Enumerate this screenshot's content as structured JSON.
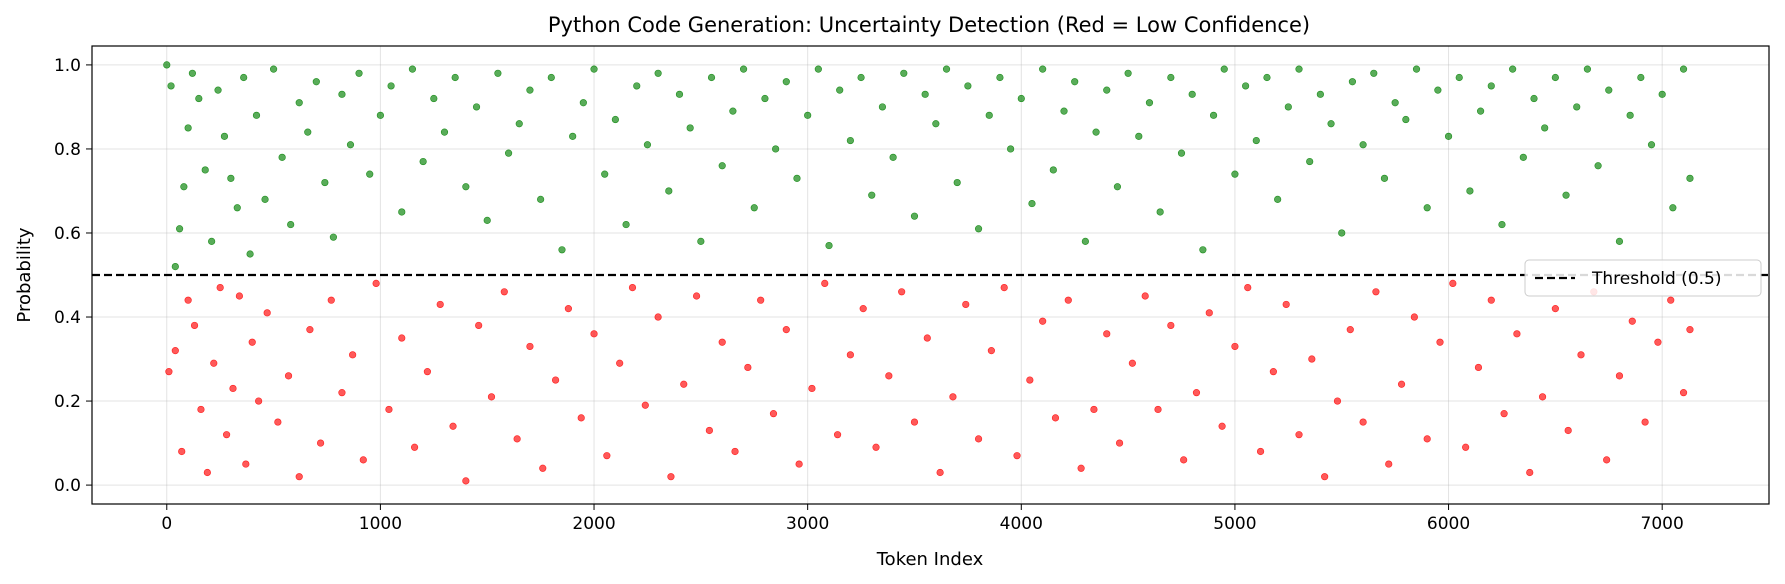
{
  "chart_data": {
    "type": "scatter",
    "title": "Python Code Generation: Uncertainty Detection (Red = Low Confidence)",
    "xlabel": "Token Index",
    "ylabel": "Probability",
    "xlim": [
      -350,
      7500
    ],
    "ylim": [
      -0.045,
      1.045
    ],
    "x_ticks": [
      0,
      1000,
      2000,
      3000,
      4000,
      5000,
      6000,
      7000
    ],
    "y_ticks": [
      0.0,
      0.2,
      0.4,
      0.6,
      0.8,
      1.0
    ],
    "y_tick_labels": [
      "0.0",
      "0.2",
      "0.4",
      "0.6",
      "0.8",
      "1.0"
    ],
    "grid": true,
    "legend_position": "center-right",
    "threshold": {
      "value": 0.5,
      "label": "Threshold (0.5)",
      "style": "dashed",
      "color": "#000000"
    },
    "colors": {
      "high_confidence": "#008000",
      "low_confidence": "#ff0000"
    },
    "series": [
      {
        "color": "#008000",
        "points": [
          [
            0,
            1.0
          ],
          [
            20,
            0.95
          ],
          [
            40,
            0.52
          ],
          [
            60,
            0.61
          ],
          [
            80,
            0.71
          ],
          [
            100,
            0.85
          ],
          [
            120,
            0.98
          ],
          [
            150,
            0.92
          ],
          [
            180,
            0.75
          ],
          [
            210,
            0.58
          ],
          [
            240,
            0.94
          ],
          [
            270,
            0.83
          ],
          [
            300,
            0.73
          ],
          [
            330,
            0.66
          ],
          [
            360,
            0.97
          ],
          [
            390,
            0.55
          ],
          [
            420,
            0.88
          ],
          [
            460,
            0.68
          ],
          [
            500,
            0.99
          ],
          [
            540,
            0.78
          ],
          [
            580,
            0.62
          ],
          [
            620,
            0.91
          ],
          [
            660,
            0.84
          ],
          [
            700,
            0.96
          ],
          [
            740,
            0.72
          ],
          [
            780,
            0.59
          ],
          [
            820,
            0.93
          ],
          [
            860,
            0.81
          ],
          [
            900,
            0.98
          ],
          [
            950,
            0.74
          ],
          [
            1000,
            0.88
          ],
          [
            1050,
            0.95
          ],
          [
            1100,
            0.65
          ],
          [
            1150,
            0.99
          ],
          [
            1200,
            0.77
          ],
          [
            1250,
            0.92
          ],
          [
            1300,
            0.84
          ],
          [
            1350,
            0.97
          ],
          [
            1400,
            0.71
          ],
          [
            1450,
            0.9
          ],
          [
            1500,
            0.63
          ],
          [
            1550,
            0.98
          ],
          [
            1600,
            0.79
          ],
          [
            1650,
            0.86
          ],
          [
            1700,
            0.94
          ],
          [
            1750,
            0.68
          ],
          [
            1800,
            0.97
          ],
          [
            1850,
            0.56
          ],
          [
            1900,
            0.83
          ],
          [
            1950,
            0.91
          ],
          [
            2000,
            0.99
          ],
          [
            2050,
            0.74
          ],
          [
            2100,
            0.87
          ],
          [
            2150,
            0.62
          ],
          [
            2200,
            0.95
          ],
          [
            2250,
            0.81
          ],
          [
            2300,
            0.98
          ],
          [
            2350,
            0.7
          ],
          [
            2400,
            0.93
          ],
          [
            2450,
            0.85
          ],
          [
            2500,
            0.58
          ],
          [
            2550,
            0.97
          ],
          [
            2600,
            0.76
          ],
          [
            2650,
            0.89
          ],
          [
            2700,
            0.99
          ],
          [
            2750,
            0.66
          ],
          [
            2800,
            0.92
          ],
          [
            2850,
            0.8
          ],
          [
            2900,
            0.96
          ],
          [
            2950,
            0.73
          ],
          [
            3000,
            0.88
          ],
          [
            3050,
            0.99
          ],
          [
            3100,
            0.57
          ],
          [
            3150,
            0.94
          ],
          [
            3200,
            0.82
          ],
          [
            3250,
            0.97
          ],
          [
            3300,
            0.69
          ],
          [
            3350,
            0.9
          ],
          [
            3400,
            0.78
          ],
          [
            3450,
            0.98
          ],
          [
            3500,
            0.64
          ],
          [
            3550,
            0.93
          ],
          [
            3600,
            0.86
          ],
          [
            3650,
            0.99
          ],
          [
            3700,
            0.72
          ],
          [
            3750,
            0.95
          ],
          [
            3800,
            0.61
          ],
          [
            3850,
            0.88
          ],
          [
            3900,
            0.97
          ],
          [
            3950,
            0.8
          ],
          [
            4000,
            0.92
          ],
          [
            4050,
            0.67
          ],
          [
            4100,
            0.99
          ],
          [
            4150,
            0.75
          ],
          [
            4200,
            0.89
          ],
          [
            4250,
            0.96
          ],
          [
            4300,
            0.58
          ],
          [
            4350,
            0.84
          ],
          [
            4400,
            0.94
          ],
          [
            4450,
            0.71
          ],
          [
            4500,
            0.98
          ],
          [
            4550,
            0.83
          ],
          [
            4600,
            0.91
          ],
          [
            4650,
            0.65
          ],
          [
            4700,
            0.97
          ],
          [
            4750,
            0.79
          ],
          [
            4800,
            0.93
          ],
          [
            4850,
            0.56
          ],
          [
            4900,
            0.88
          ],
          [
            4950,
            0.99
          ],
          [
            5000,
            0.74
          ],
          [
            5050,
            0.95
          ],
          [
            5100,
            0.82
          ],
          [
            5150,
            0.97
          ],
          [
            5200,
            0.68
          ],
          [
            5250,
            0.9
          ],
          [
            5300,
            0.99
          ],
          [
            5350,
            0.77
          ],
          [
            5400,
            0.93
          ],
          [
            5450,
            0.86
          ],
          [
            5500,
            0.6
          ],
          [
            5550,
            0.96
          ],
          [
            5600,
            0.81
          ],
          [
            5650,
            0.98
          ],
          [
            5700,
            0.73
          ],
          [
            5750,
            0.91
          ],
          [
            5800,
            0.87
          ],
          [
            5850,
            0.99
          ],
          [
            5900,
            0.66
          ],
          [
            5950,
            0.94
          ],
          [
            6000,
            0.83
          ],
          [
            6050,
            0.97
          ],
          [
            6100,
            0.7
          ],
          [
            6150,
            0.89
          ],
          [
            6200,
            0.95
          ],
          [
            6250,
            0.62
          ],
          [
            6300,
            0.99
          ],
          [
            6350,
            0.78
          ],
          [
            6400,
            0.92
          ],
          [
            6450,
            0.85
          ],
          [
            6500,
            0.97
          ],
          [
            6550,
            0.69
          ],
          [
            6600,
            0.9
          ],
          [
            6650,
            0.99
          ],
          [
            6700,
            0.76
          ],
          [
            6750,
            0.94
          ],
          [
            6800,
            0.58
          ],
          [
            6850,
            0.88
          ],
          [
            6900,
            0.97
          ],
          [
            6950,
            0.81
          ],
          [
            7000,
            0.93
          ],
          [
            7050,
            0.66
          ],
          [
            7100,
            0.99
          ],
          [
            7130,
            0.73
          ]
        ]
      },
      {
        "color": "#ff0000",
        "points": [
          [
            10,
            0.27
          ],
          [
            40,
            0.32
          ],
          [
            70,
            0.08
          ],
          [
            100,
            0.44
          ],
          [
            130,
            0.38
          ],
          [
            160,
            0.18
          ],
          [
            190,
            0.03
          ],
          [
            220,
            0.29
          ],
          [
            250,
            0.47
          ],
          [
            280,
            0.12
          ],
          [
            310,
            0.23
          ],
          [
            340,
            0.45
          ],
          [
            370,
            0.05
          ],
          [
            400,
            0.34
          ],
          [
            430,
            0.2
          ],
          [
            470,
            0.41
          ],
          [
            520,
            0.15
          ],
          [
            570,
            0.26
          ],
          [
            620,
            0.02
          ],
          [
            670,
            0.37
          ],
          [
            720,
            0.1
          ],
          [
            770,
            0.44
          ],
          [
            820,
            0.22
          ],
          [
            870,
            0.31
          ],
          [
            920,
            0.06
          ],
          [
            980,
            0.48
          ],
          [
            1040,
            0.18
          ],
          [
            1100,
            0.35
          ],
          [
            1160,
            0.09
          ],
          [
            1220,
            0.27
          ],
          [
            1280,
            0.43
          ],
          [
            1340,
            0.14
          ],
          [
            1400,
            0.01
          ],
          [
            1460,
            0.38
          ],
          [
            1520,
            0.21
          ],
          [
            1580,
            0.46
          ],
          [
            1640,
            0.11
          ],
          [
            1700,
            0.33
          ],
          [
            1760,
            0.04
          ],
          [
            1820,
            0.25
          ],
          [
            1880,
            0.42
          ],
          [
            1940,
            0.16
          ],
          [
            2000,
            0.36
          ],
          [
            2060,
            0.07
          ],
          [
            2120,
            0.29
          ],
          [
            2180,
            0.47
          ],
          [
            2240,
            0.19
          ],
          [
            2300,
            0.4
          ],
          [
            2360,
            0.02
          ],
          [
            2420,
            0.24
          ],
          [
            2480,
            0.45
          ],
          [
            2540,
            0.13
          ],
          [
            2600,
            0.34
          ],
          [
            2660,
            0.08
          ],
          [
            2720,
            0.28
          ],
          [
            2780,
            0.44
          ],
          [
            2840,
            0.17
          ],
          [
            2900,
            0.37
          ],
          [
            2960,
            0.05
          ],
          [
            3020,
            0.23
          ],
          [
            3080,
            0.48
          ],
          [
            3140,
            0.12
          ],
          [
            3200,
            0.31
          ],
          [
            3260,
            0.42
          ],
          [
            3320,
            0.09
          ],
          [
            3380,
            0.26
          ],
          [
            3440,
            0.46
          ],
          [
            3500,
            0.15
          ],
          [
            3560,
            0.35
          ],
          [
            3620,
            0.03
          ],
          [
            3680,
            0.21
          ],
          [
            3740,
            0.43
          ],
          [
            3800,
            0.11
          ],
          [
            3860,
            0.32
          ],
          [
            3920,
            0.47
          ],
          [
            3980,
            0.07
          ],
          [
            4040,
            0.25
          ],
          [
            4100,
            0.39
          ],
          [
            4160,
            0.16
          ],
          [
            4220,
            0.44
          ],
          [
            4280,
            0.04
          ],
          [
            4340,
            0.18
          ],
          [
            4400,
            0.36
          ],
          [
            4460,
            0.1
          ],
          [
            4520,
            0.29
          ],
          [
            4580,
            0.45
          ],
          [
            4640,
            0.18
          ],
          [
            4700,
            0.38
          ],
          [
            4760,
            0.06
          ],
          [
            4820,
            0.22
          ],
          [
            4880,
            0.41
          ],
          [
            4940,
            0.14
          ],
          [
            5000,
            0.33
          ],
          [
            5060,
            0.47
          ],
          [
            5120,
            0.08
          ],
          [
            5180,
            0.27
          ],
          [
            5240,
            0.43
          ],
          [
            5300,
            0.12
          ],
          [
            5360,
            0.3
          ],
          [
            5420,
            0.02
          ],
          [
            5480,
            0.2
          ],
          [
            5540,
            0.37
          ],
          [
            5600,
            0.15
          ],
          [
            5660,
            0.46
          ],
          [
            5720,
            0.05
          ],
          [
            5780,
            0.24
          ],
          [
            5840,
            0.4
          ],
          [
            5900,
            0.11
          ],
          [
            5960,
            0.34
          ],
          [
            6020,
            0.48
          ],
          [
            6080,
            0.09
          ],
          [
            6140,
            0.28
          ],
          [
            6200,
            0.44
          ],
          [
            6260,
            0.17
          ],
          [
            6320,
            0.36
          ],
          [
            6380,
            0.03
          ],
          [
            6440,
            0.21
          ],
          [
            6500,
            0.42
          ],
          [
            6560,
            0.13
          ],
          [
            6620,
            0.31
          ],
          [
            6680,
            0.46
          ],
          [
            6740,
            0.06
          ],
          [
            6800,
            0.26
          ],
          [
            6860,
            0.39
          ],
          [
            6920,
            0.15
          ],
          [
            6980,
            0.34
          ],
          [
            7040,
            0.44
          ],
          [
            7100,
            0.22
          ],
          [
            7130,
            0.37
          ]
        ]
      }
    ]
  }
}
